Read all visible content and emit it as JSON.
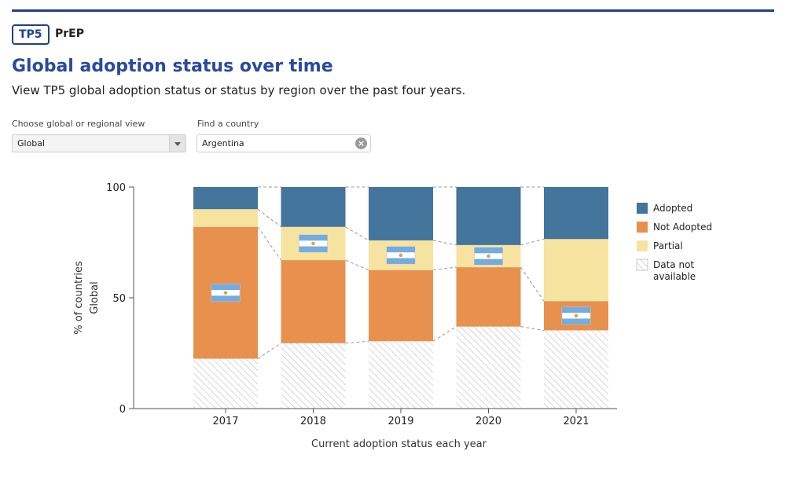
{
  "header": {
    "badge": "TP5",
    "tag": "PrEP"
  },
  "page": {
    "title": "Global adoption status over time",
    "subtitle": "View TP5 global adoption status or status by region over the past four years."
  },
  "controls": {
    "view_label": "Choose global or regional view",
    "view_value": "Global",
    "country_label": "Find a country",
    "country_value": "Argentina"
  },
  "chart_data": {
    "type": "bar",
    "stacked": true,
    "categories": [
      "2017",
      "2018",
      "2019",
      "2020",
      "2021"
    ],
    "series": [
      {
        "name": "Data not available",
        "color": "#ffffff",
        "pattern": "hatch",
        "values": [
          22.5,
          29.5,
          30.4,
          37.0,
          35.3
        ]
      },
      {
        "name": "Not Adopted",
        "color": "#e8914e",
        "values": [
          59.5,
          37.5,
          32.1,
          26.8,
          13.2
        ]
      },
      {
        "name": "Partial",
        "color": "#f6e3a0",
        "values": [
          8.0,
          15.0,
          13.4,
          10.0,
          28.0
        ]
      },
      {
        "name": "Adopted",
        "color": "#44759c",
        "values": [
          10.0,
          18.0,
          24.1,
          26.2,
          23.5
        ]
      }
    ],
    "legend_order": [
      "Adopted",
      "Not Adopted",
      "Partial",
      "Data not available"
    ],
    "legend_labels": [
      [
        "Adopted"
      ],
      [
        "Not Adopted"
      ],
      [
        "Partial"
      ],
      [
        "Data not",
        "available"
      ]
    ],
    "legend_position": "right",
    "highlight_country": "Argentina",
    "highlight_status": [
      "Not Adopted",
      "Partial",
      "Partial",
      "Partial",
      "Not Adopted"
    ],
    "xlabel": "Current adoption status each year",
    "ylabel": "% of countries",
    "ylabel_sub": "Global",
    "yticks": [
      0,
      50,
      100
    ],
    "ylim": [
      0,
      100
    ],
    "grid": false,
    "connector_lines": true
  }
}
